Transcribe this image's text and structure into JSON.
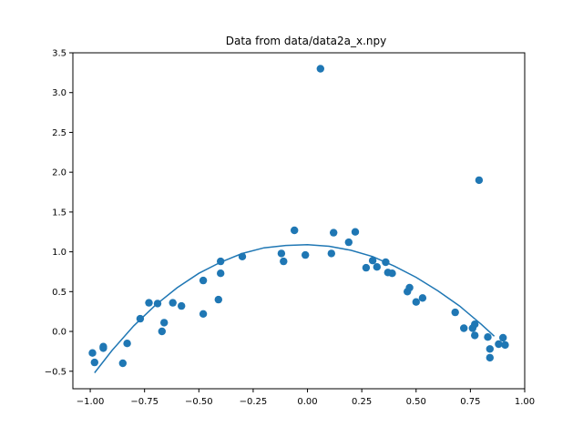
{
  "chart_data": {
    "type": "scatter",
    "title": "Data from data/data2a_x.npy",
    "xlabel": "",
    "ylabel": "",
    "xlim": [
      -1.08,
      1.0
    ],
    "ylim": [
      -0.72,
      3.5
    ],
    "xticks": [
      -1.0,
      -0.75,
      -0.5,
      -0.25,
      0.0,
      0.25,
      0.5,
      0.75,
      1.0
    ],
    "xtick_labels": [
      "−1.00",
      "−0.75",
      "−0.50",
      "−0.25",
      "0.00",
      "0.25",
      "0.50",
      "0.75",
      "1.00"
    ],
    "yticks": [
      -0.5,
      0.0,
      0.5,
      1.0,
      1.5,
      2.0,
      2.5,
      3.0,
      3.5
    ],
    "ytick_labels": [
      "−0.5",
      "0.0",
      "0.5",
      "1.0",
      "1.5",
      "2.0",
      "2.5",
      "3.0",
      "3.5"
    ],
    "grid": false,
    "color": "#1f77b4",
    "series": [
      {
        "kind": "scatter",
        "points": [
          [
            -0.99,
            -0.27
          ],
          [
            -0.98,
            -0.39
          ],
          [
            -0.94,
            -0.19
          ],
          [
            -0.94,
            -0.21
          ],
          [
            -0.85,
            -0.4
          ],
          [
            -0.83,
            -0.15
          ],
          [
            -0.77,
            0.16
          ],
          [
            -0.73,
            0.36
          ],
          [
            -0.69,
            0.35
          ],
          [
            -0.67,
            0.0
          ],
          [
            -0.66,
            0.11
          ],
          [
            -0.62,
            0.36
          ],
          [
            -0.58,
            0.32
          ],
          [
            -0.48,
            0.64
          ],
          [
            -0.48,
            0.22
          ],
          [
            -0.41,
            0.4
          ],
          [
            -0.4,
            0.88
          ],
          [
            -0.4,
            0.73
          ],
          [
            -0.3,
            0.94
          ],
          [
            -0.12,
            0.98
          ],
          [
            -0.11,
            0.88
          ],
          [
            -0.06,
            1.27
          ],
          [
            -0.01,
            0.96
          ],
          [
            0.06,
            3.3
          ],
          [
            0.11,
            0.98
          ],
          [
            0.12,
            1.24
          ],
          [
            0.19,
            1.12
          ],
          [
            0.22,
            1.25
          ],
          [
            0.27,
            0.8
          ],
          [
            0.3,
            0.89
          ],
          [
            0.32,
            0.81
          ],
          [
            0.36,
            0.87
          ],
          [
            0.37,
            0.74
          ],
          [
            0.39,
            0.73
          ],
          [
            0.46,
            0.5
          ],
          [
            0.47,
            0.55
          ],
          [
            0.5,
            0.37
          ],
          [
            0.53,
            0.42
          ],
          [
            0.68,
            0.24
          ],
          [
            0.72,
            0.04
          ],
          [
            0.76,
            0.04
          ],
          [
            0.77,
            0.09
          ],
          [
            0.77,
            -0.05
          ],
          [
            0.79,
            1.9
          ],
          [
            0.83,
            -0.07
          ],
          [
            0.84,
            -0.22
          ],
          [
            0.84,
            -0.33
          ],
          [
            0.88,
            -0.16
          ],
          [
            0.9,
            -0.08
          ],
          [
            0.91,
            -0.17
          ]
        ]
      },
      {
        "kind": "line",
        "points": [
          [
            -0.98,
            -0.52
          ],
          [
            -0.9,
            -0.24
          ],
          [
            -0.8,
            0.07
          ],
          [
            -0.7,
            0.33
          ],
          [
            -0.6,
            0.55
          ],
          [
            -0.5,
            0.73
          ],
          [
            -0.4,
            0.87
          ],
          [
            -0.3,
            0.98
          ],
          [
            -0.2,
            1.05
          ],
          [
            -0.1,
            1.08
          ],
          [
            0.0,
            1.09
          ],
          [
            0.1,
            1.07
          ],
          [
            0.2,
            1.02
          ],
          [
            0.3,
            0.94
          ],
          [
            0.4,
            0.82
          ],
          [
            0.5,
            0.68
          ],
          [
            0.6,
            0.51
          ],
          [
            0.7,
            0.32
          ],
          [
            0.8,
            0.09
          ],
          [
            0.86,
            -0.06
          ]
        ]
      }
    ]
  }
}
